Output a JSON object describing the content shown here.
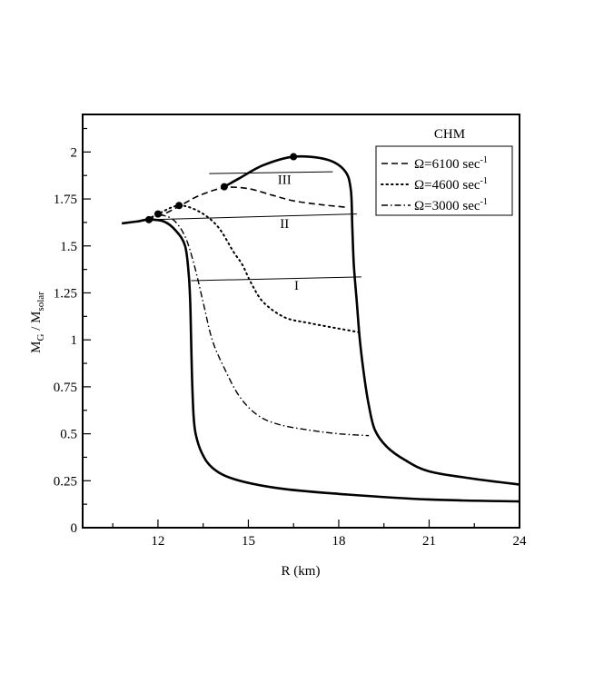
{
  "chart_data": {
    "type": "line",
    "xlabel": "R (km)",
    "ylabel": "M_G / M_solar",
    "ylabel_parts": {
      "main": "M",
      "sub1": "G",
      "sep": " / M",
      "sub2": "solar"
    },
    "xlim": [
      9.5,
      24
    ],
    "ylim": [
      0,
      2.2
    ],
    "xticks": [
      12,
      15,
      18,
      21,
      24
    ],
    "xtick_labels": [
      "12",
      "15",
      "18",
      "21",
      "24"
    ],
    "yticks": [
      0,
      0.25,
      0.5,
      0.75,
      1,
      1.25,
      1.5,
      1.75,
      2
    ],
    "ytick_labels": [
      "0",
      "0.25",
      "0.5",
      "0.75",
      "1",
      "1.25",
      "1.5",
      "1.75",
      "2"
    ],
    "legend": {
      "title": "CHM",
      "placement": "top-right",
      "entries": [
        {
          "label": "Ω=6100 sec",
          "sup": "-1",
          "style": "dashed"
        },
        {
          "label": "Ω=4600 sec",
          "sup": "-1",
          "style": "dotted"
        },
        {
          "label": "Ω=3000 sec",
          "sup": "-1",
          "style": "dashdot"
        }
      ]
    },
    "series": [
      {
        "style": "thick-solid",
        "points": [
          [
            24,
            0.14
          ],
          [
            21,
            0.15
          ],
          [
            18,
            0.18
          ],
          [
            16,
            0.21
          ],
          [
            14.5,
            0.26
          ],
          [
            13.8,
            0.32
          ],
          [
            13.45,
            0.4
          ],
          [
            13.25,
            0.5
          ],
          [
            13.18,
            0.6
          ],
          [
            13.13,
            0.8
          ],
          [
            13.1,
            1.0
          ],
          [
            13.07,
            1.2
          ],
          [
            13.02,
            1.35
          ],
          [
            12.9,
            1.5
          ],
          [
            12.6,
            1.58
          ],
          [
            12.2,
            1.63
          ],
          [
            11.7,
            1.64
          ],
          [
            11.3,
            1.63
          ],
          [
            10.8,
            1.62
          ]
        ]
      },
      {
        "style": "thick-solid",
        "points": [
          [
            24,
            0.23
          ],
          [
            22.5,
            0.26
          ],
          [
            21,
            0.3
          ],
          [
            20.2,
            0.36
          ],
          [
            19.6,
            0.43
          ],
          [
            19.2,
            0.52
          ],
          [
            19.0,
            0.65
          ],
          [
            18.85,
            0.8
          ],
          [
            18.7,
            1.0
          ],
          [
            18.6,
            1.2
          ],
          [
            18.5,
            1.4
          ],
          [
            18.45,
            1.6
          ],
          [
            18.4,
            1.8
          ],
          [
            18.2,
            1.9
          ],
          [
            17.6,
            1.96
          ],
          [
            16.5,
            1.975
          ],
          [
            15.5,
            1.93
          ],
          [
            14.7,
            1.86
          ],
          [
            14.2,
            1.815
          ]
        ]
      },
      {
        "style": "dashed",
        "points": [
          [
            11.65,
            1.64
          ],
          [
            12.2,
            1.67
          ],
          [
            12.8,
            1.72
          ],
          [
            13.4,
            1.77
          ],
          [
            14.2,
            1.81
          ],
          [
            15.0,
            1.805
          ],
          [
            15.8,
            1.77
          ],
          [
            16.5,
            1.74
          ],
          [
            17.4,
            1.72
          ],
          [
            18.3,
            1.705
          ]
        ]
      },
      {
        "style": "dotted",
        "points": [
          [
            11.65,
            1.64
          ],
          [
            12.0,
            1.67
          ],
          [
            12.7,
            1.715
          ],
          [
            13.4,
            1.68
          ],
          [
            14.0,
            1.6
          ],
          [
            14.5,
            1.47
          ],
          [
            14.8,
            1.4
          ],
          [
            15.1,
            1.3
          ],
          [
            15.5,
            1.2
          ],
          [
            16.2,
            1.12
          ],
          [
            17.0,
            1.09
          ],
          [
            18.0,
            1.06
          ],
          [
            18.7,
            1.04
          ]
        ]
      },
      {
        "style": "dashdot",
        "points": [
          [
            11.65,
            1.64
          ],
          [
            12.0,
            1.665
          ],
          [
            12.5,
            1.64
          ],
          [
            12.9,
            1.55
          ],
          [
            13.2,
            1.4
          ],
          [
            13.5,
            1.2
          ],
          [
            13.8,
            1.0
          ],
          [
            14.2,
            0.85
          ],
          [
            14.7,
            0.7
          ],
          [
            15.3,
            0.6
          ],
          [
            16.0,
            0.55
          ],
          [
            17.0,
            0.52
          ],
          [
            18.0,
            0.5
          ],
          [
            19.0,
            0.49
          ]
        ]
      }
    ],
    "max_points": [
      [
        11.7,
        1.64
      ],
      [
        12.0,
        1.67
      ],
      [
        12.7,
        1.715
      ],
      [
        14.2,
        1.815
      ],
      [
        16.5,
        1.975
      ]
    ],
    "constant_lines": [
      {
        "label": "I",
        "points": [
          [
            13.1,
            1.315
          ],
          [
            18.75,
            1.335
          ]
        ],
        "label_pos": [
          16.6,
          1.29
        ]
      },
      {
        "label": "II",
        "points": [
          [
            11.7,
            1.64
          ],
          [
            18.6,
            1.67
          ]
        ],
        "label_pos": [
          16.2,
          1.62
        ]
      },
      {
        "label": "III",
        "points": [
          [
            13.7,
            1.885
          ],
          [
            17.8,
            1.895
          ]
        ],
        "label_pos": [
          16.2,
          1.855
        ]
      }
    ]
  }
}
